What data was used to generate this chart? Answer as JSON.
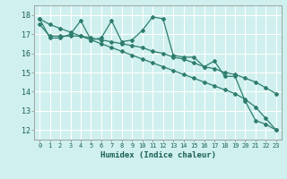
{
  "xlabel": "Humidex (Indice chaleur)",
  "background_color": "#cff0ee",
  "grid_color": "#ffffff",
  "line_color": "#2e7d6e",
  "xlim": [
    -0.5,
    23.5
  ],
  "ylim": [
    11.5,
    18.5
  ],
  "xticks": [
    0,
    1,
    2,
    3,
    4,
    5,
    6,
    7,
    8,
    9,
    10,
    11,
    12,
    13,
    14,
    15,
    16,
    17,
    18,
    19,
    20,
    21,
    22,
    23
  ],
  "yticks": [
    12,
    13,
    14,
    15,
    16,
    17,
    18
  ],
  "line1_x": [
    0,
    1,
    2,
    3,
    4,
    5,
    6,
    7,
    8,
    9,
    10,
    11,
    12,
    13,
    14,
    15,
    16,
    17,
    18,
    19,
    20,
    21,
    22,
    23
  ],
  "line1_y": [
    17.8,
    16.8,
    16.8,
    17.0,
    17.7,
    16.7,
    16.8,
    17.7,
    16.6,
    16.7,
    17.2,
    17.9,
    17.8,
    15.9,
    15.8,
    15.8,
    15.3,
    15.6,
    14.8,
    14.8,
    13.5,
    12.5,
    12.3,
    12.0
  ],
  "line2_x": [
    0,
    1,
    2,
    3,
    4,
    5,
    6,
    7,
    8,
    9,
    10,
    11,
    12,
    13,
    14,
    15,
    16,
    17,
    18,
    19,
    20,
    21,
    22,
    23
  ],
  "line2_y": [
    17.5,
    16.9,
    16.9,
    16.9,
    16.9,
    16.8,
    16.7,
    16.6,
    16.5,
    16.4,
    16.3,
    16.1,
    16.0,
    15.8,
    15.7,
    15.5,
    15.3,
    15.2,
    15.0,
    14.9,
    14.7,
    14.5,
    14.2,
    13.9
  ],
  "line3_x": [
    0,
    1,
    2,
    3,
    4,
    5,
    6,
    7,
    8,
    9,
    10,
    11,
    12,
    13,
    14,
    15,
    16,
    17,
    18,
    19,
    20,
    21,
    22,
    23
  ],
  "line3_y": [
    17.8,
    17.5,
    17.3,
    17.1,
    16.9,
    16.7,
    16.5,
    16.3,
    16.1,
    15.9,
    15.7,
    15.5,
    15.3,
    15.1,
    14.9,
    14.7,
    14.5,
    14.3,
    14.1,
    13.9,
    13.6,
    13.2,
    12.6,
    12.0
  ]
}
